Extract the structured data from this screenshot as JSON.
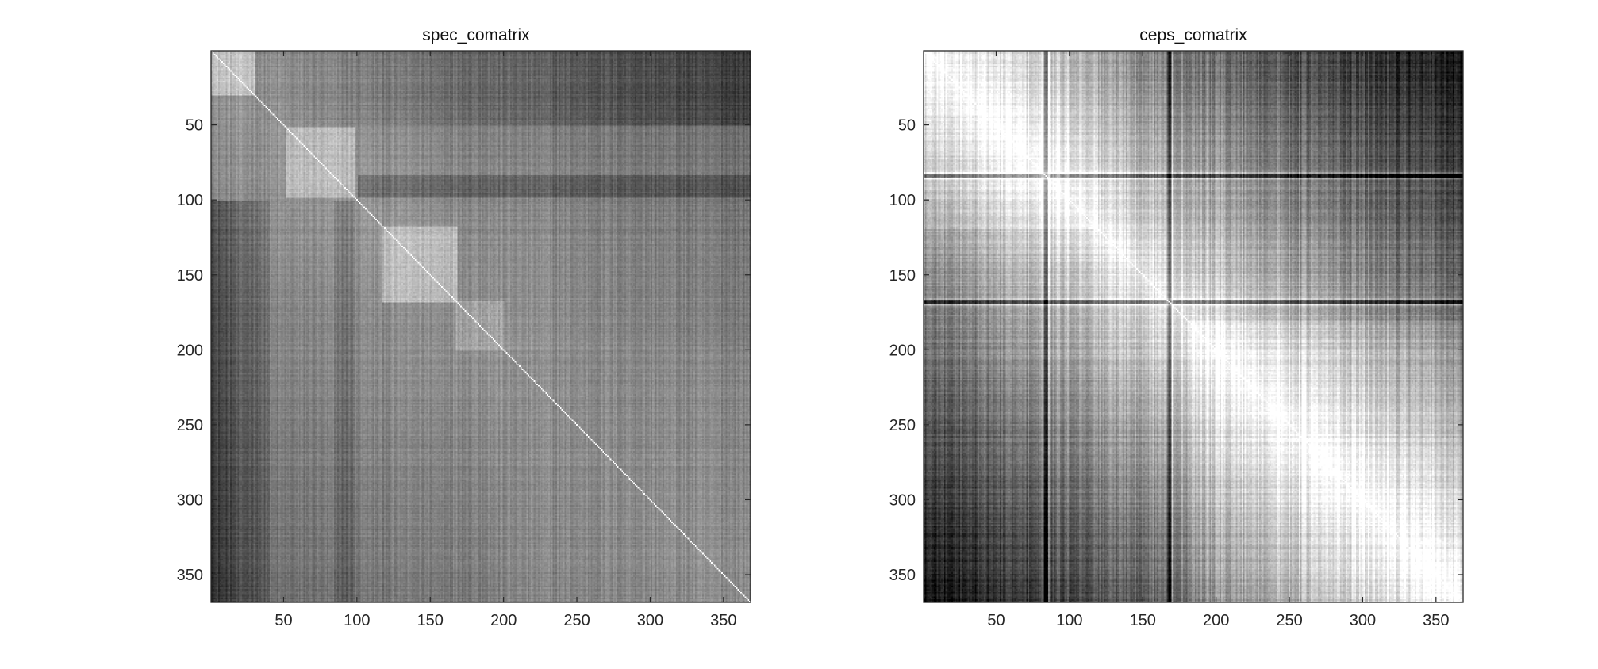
{
  "figure": {
    "background": "#ffffff"
  },
  "chart_data": [
    {
      "type": "heatmap",
      "title": "spec_comatrix",
      "colormap": "gray",
      "size": [
        368,
        368
      ],
      "xlim": [
        0.5,
        368.5
      ],
      "ylim": [
        0.5,
        368.5
      ],
      "y_direction": "reverse",
      "xticks": [
        50,
        100,
        150,
        200,
        250,
        300,
        350
      ],
      "yticks": [
        50,
        100,
        150,
        200,
        250,
        300,
        350
      ],
      "grid": false,
      "legend": "none",
      "diagonal_value": 1.0,
      "blocks": [
        {
          "range": [
            1,
            30
          ],
          "value": 0.78
        },
        {
          "range": [
            52,
            98
          ],
          "value": 0.75
        },
        {
          "range": [
            118,
            168
          ],
          "value": 0.76
        },
        {
          "range": [
            168,
            200
          ],
          "value": 0.68
        }
      ],
      "description_values": {
        "dark_rows_range": [
          [
            1,
            50
          ],
          [
            85,
            98
          ]
        ],
        "bright_diagonal": true
      }
    },
    {
      "type": "heatmap",
      "title": "ceps_comatrix",
      "colormap": "gray",
      "size": [
        368,
        368
      ],
      "xlim": [
        0.5,
        368.5
      ],
      "ylim": [
        0.5,
        368.5
      ],
      "y_direction": "reverse",
      "xticks": [
        50,
        100,
        150,
        200,
        250,
        300,
        350
      ],
      "yticks": [
        50,
        100,
        150,
        200,
        250,
        300,
        350
      ],
      "grid": false,
      "legend": "none",
      "diagonal_value": 1.0,
      "dark_lines": [
        84,
        168
      ],
      "description_values": {
        "bright_region": "near diagonal",
        "dark_region": "off-diagonal corners"
      }
    }
  ]
}
